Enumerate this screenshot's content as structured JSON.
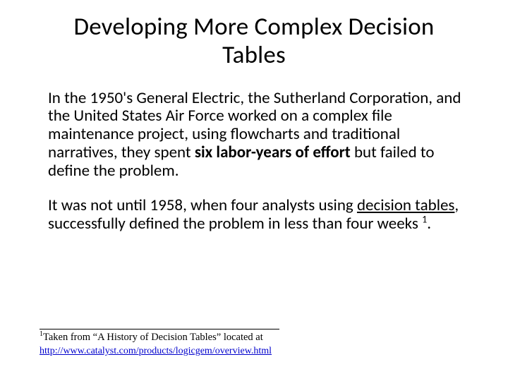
{
  "title": "Developing More Complex Decision Tables",
  "para1_a": "In the 1950's General Electric, the Sutherland Corporation, and the United States Air Force worked on a complex file maintenance project, using flowcharts and traditional narratives, they spent ",
  "para1_bold": "six labor-years of effort",
  "para1_b": " but failed to define the problem.",
  "para2_a": "It was not until 1958, when four analysts using ",
  "para2_under": "decision tables",
  "para2_b": ", successfully defined the problem in less than four weeks ",
  "para2_sup": "1",
  "para2_c": ".",
  "footnote_sup": "1",
  "footnote_a": "Taken from “A History of Decision Tables” located at",
  "footnote_link": "http://www.catalyst.com/products/logicgem/overview.html"
}
